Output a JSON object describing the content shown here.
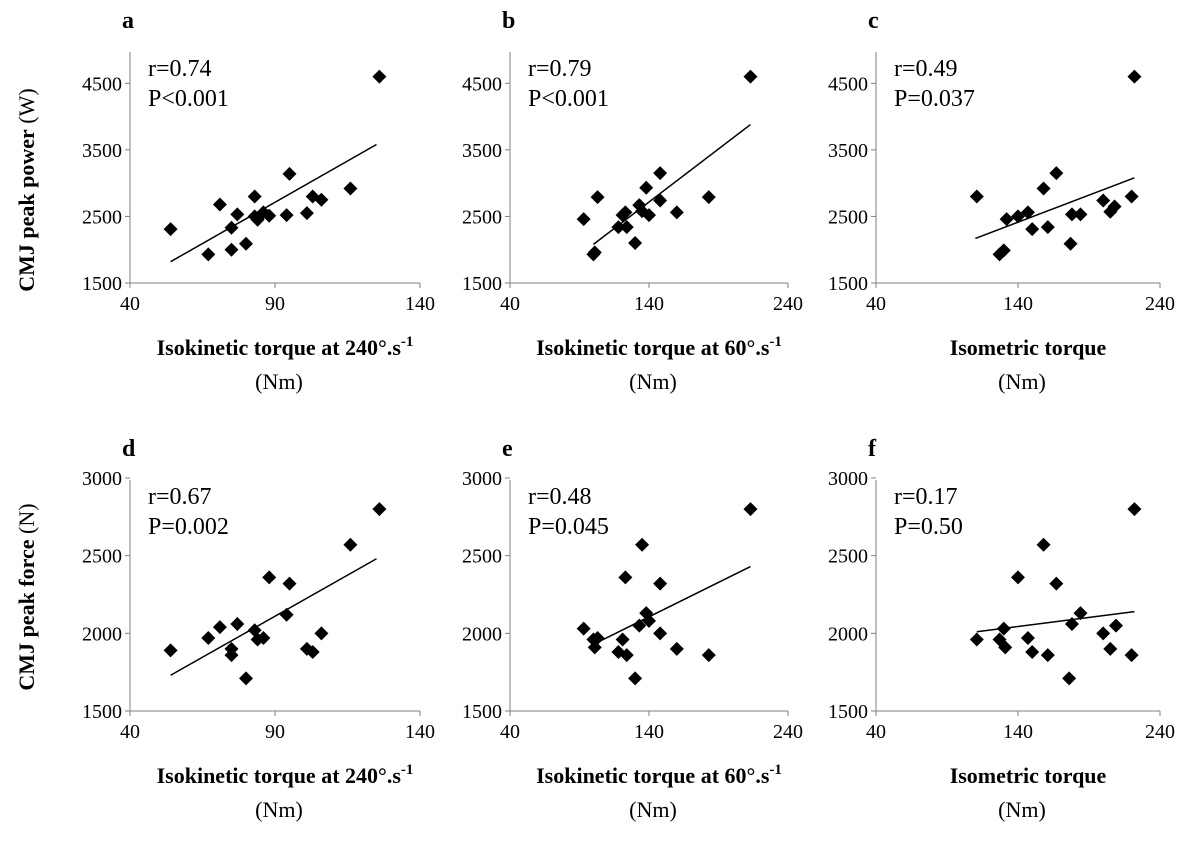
{
  "figure": {
    "rows": [
      {
        "ylabel": {
          "bold": "CMJ peak power",
          "unit": " (W)"
        }
      },
      {
        "ylabel": {
          "bold": "CMJ peak force",
          "unit": " (N)"
        }
      }
    ]
  },
  "chart_data": [
    {
      "panel": "a",
      "type": "scatter",
      "stat_r": "r=0.74",
      "stat_p": "P<0.001",
      "xlabel_main": "Isokinetic torque at 240°.s",
      "xlabel_sup": "-1",
      "xlabel_unit": "(Nm)",
      "xlim": [
        40,
        140
      ],
      "xticks": [
        40,
        90,
        140
      ],
      "ylim": [
        1500,
        5000
      ],
      "yticks": [
        1500,
        2500,
        3500,
        4500
      ],
      "points": [
        [
          54,
          2310
        ],
        [
          67,
          1930
        ],
        [
          71,
          2680
        ],
        [
          75,
          2000
        ],
        [
          75,
          2330
        ],
        [
          77,
          2530
        ],
        [
          80,
          2090
        ],
        [
          83,
          2800
        ],
        [
          83,
          2500
        ],
        [
          84,
          2450
        ],
        [
          86,
          2560
        ],
        [
          88,
          2510
        ],
        [
          94,
          2520
        ],
        [
          95,
          3140
        ],
        [
          101,
          2550
        ],
        [
          103,
          2800
        ],
        [
          106,
          2750
        ],
        [
          116,
          2920
        ],
        [
          126,
          4600
        ]
      ],
      "trend": [
        [
          54,
          1820
        ],
        [
          125,
          3580
        ]
      ]
    },
    {
      "panel": "b",
      "type": "scatter",
      "stat_r": "r=0.79",
      "stat_p": "P<0.001",
      "xlabel_main": "Isokinetic torque at 60°.s",
      "xlabel_sup": "-1",
      "xlabel_unit": "(Nm)",
      "xlim": [
        40,
        240
      ],
      "xticks": [
        40,
        140,
        240
      ],
      "ylim": [
        1500,
        5000
      ],
      "yticks": [
        1500,
        2500,
        3500,
        4500
      ],
      "points": [
        [
          93,
          2460
        ],
        [
          100,
          1930
        ],
        [
          101,
          1960
        ],
        [
          103,
          2790
        ],
        [
          118,
          2340
        ],
        [
          121,
          2520
        ],
        [
          123,
          2560
        ],
        [
          124,
          2340
        ],
        [
          130,
          2100
        ],
        [
          133,
          2670
        ],
        [
          135,
          2580
        ],
        [
          138,
          2930
        ],
        [
          140,
          2520
        ],
        [
          148,
          3150
        ],
        [
          148,
          2740
        ],
        [
          160,
          2560
        ],
        [
          183,
          2790
        ],
        [
          213,
          4600
        ]
      ],
      "trend": [
        [
          100,
          2080
        ],
        [
          213,
          3880
        ]
      ]
    },
    {
      "panel": "c",
      "type": "scatter",
      "stat_r": "r=0.49",
      "stat_p": "P=0.037",
      "xlabel_main": "Isometric torque",
      "xlabel_sup": "",
      "xlabel_unit": "(Nm)",
      "xlim": [
        40,
        240
      ],
      "xticks": [
        40,
        140,
        240
      ],
      "ylim": [
        1500,
        5000
      ],
      "yticks": [
        1500,
        2500,
        3500,
        4500
      ],
      "points": [
        [
          111,
          2800
        ],
        [
          127,
          1930
        ],
        [
          130,
          1990
        ],
        [
          132,
          2460
        ],
        [
          140,
          2500
        ],
        [
          147,
          2560
        ],
        [
          150,
          2310
        ],
        [
          158,
          2920
        ],
        [
          161,
          2340
        ],
        [
          167,
          3150
        ],
        [
          177,
          2090
        ],
        [
          178,
          2530
        ],
        [
          184,
          2530
        ],
        [
          200,
          2740
        ],
        [
          205,
          2570
        ],
        [
          208,
          2650
        ],
        [
          220,
          2800
        ],
        [
          222,
          4600
        ]
      ],
      "trend": [
        [
          110,
          2170
        ],
        [
          222,
          3080
        ]
      ]
    },
    {
      "panel": "d",
      "type": "scatter",
      "stat_r": "r=0.67",
      "stat_p": "P=0.002",
      "xlabel_main": "Isokinetic torque at 240°.s",
      "xlabel_sup": "-1",
      "xlabel_unit": "(Nm)",
      "xlim": [
        40,
        140
      ],
      "xticks": [
        40,
        90,
        140
      ],
      "ylim": [
        1500,
        3000
      ],
      "yticks": [
        1500,
        2000,
        2500,
        3000
      ],
      "points": [
        [
          54,
          1890
        ],
        [
          67,
          1970
        ],
        [
          71,
          2040
        ],
        [
          75,
          1860
        ],
        [
          75,
          1900
        ],
        [
          77,
          2060
        ],
        [
          80,
          1710
        ],
        [
          83,
          2020
        ],
        [
          84,
          1960
        ],
        [
          86,
          1970
        ],
        [
          88,
          2360
        ],
        [
          94,
          2120
        ],
        [
          95,
          2320
        ],
        [
          101,
          1900
        ],
        [
          103,
          1880
        ],
        [
          106,
          2000
        ],
        [
          116,
          2570
        ],
        [
          126,
          2800
        ]
      ],
      "trend": [
        [
          54,
          1730
        ],
        [
          125,
          2480
        ]
      ]
    },
    {
      "panel": "e",
      "type": "scatter",
      "stat_r": "r=0.48",
      "stat_p": "P=0.045",
      "xlabel_main": "Isokinetic torque at 60°.s",
      "xlabel_sup": "-1",
      "xlabel_unit": "(Nm)",
      "xlim": [
        40,
        240
      ],
      "xticks": [
        40,
        140,
        240
      ],
      "ylim": [
        1500,
        3000
      ],
      "yticks": [
        1500,
        2000,
        2500,
        3000
      ],
      "points": [
        [
          93,
          2030
        ],
        [
          100,
          1960
        ],
        [
          101,
          1910
        ],
        [
          103,
          1970
        ],
        [
          118,
          1880
        ],
        [
          121,
          1960
        ],
        [
          123,
          2360
        ],
        [
          124,
          1860
        ],
        [
          130,
          1710
        ],
        [
          133,
          2050
        ],
        [
          135,
          2570
        ],
        [
          138,
          2130
        ],
        [
          140,
          2080
        ],
        [
          148,
          2320
        ],
        [
          148,
          2000
        ],
        [
          160,
          1900
        ],
        [
          183,
          1860
        ],
        [
          213,
          2800
        ]
      ],
      "trend": [
        [
          98,
          1920
        ],
        [
          213,
          2430
        ]
      ]
    },
    {
      "panel": "f",
      "type": "scatter",
      "stat_r": "r=0.17",
      "stat_p": "P=0.50",
      "xlabel_main": "Isometric torque",
      "xlabel_sup": "",
      "xlabel_unit": "(Nm)",
      "xlim": [
        40,
        240
      ],
      "xticks": [
        40,
        140,
        240
      ],
      "ylim": [
        1500,
        3000
      ],
      "yticks": [
        1500,
        2000,
        2500,
        3000
      ],
      "points": [
        [
          111,
          1960
        ],
        [
          127,
          1960
        ],
        [
          130,
          2030
        ],
        [
          131,
          1910
        ],
        [
          140,
          2360
        ],
        [
          147,
          1970
        ],
        [
          150,
          1880
        ],
        [
          158,
          2570
        ],
        [
          161,
          1860
        ],
        [
          167,
          2320
        ],
        [
          176,
          1710
        ],
        [
          178,
          2060
        ],
        [
          184,
          2130
        ],
        [
          200,
          2000
        ],
        [
          205,
          1900
        ],
        [
          209,
          2050
        ],
        [
          220,
          1860
        ],
        [
          222,
          2800
        ]
      ],
      "trend": [
        [
          111,
          2010
        ],
        [
          222,
          2140
        ]
      ]
    }
  ]
}
